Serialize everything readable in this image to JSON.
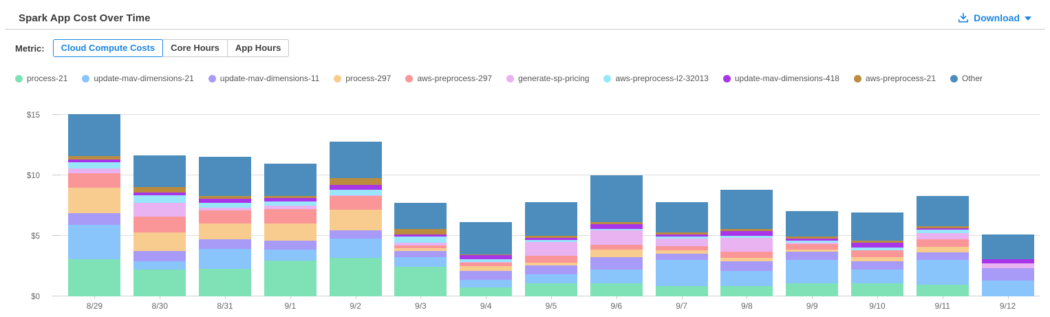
{
  "header": {
    "title": "Spark App Cost Over Time",
    "download_label": "Download"
  },
  "controls": {
    "metric_label": "Metric:",
    "options": [
      {
        "label": "Cloud Compute Costs",
        "selected": true
      },
      {
        "label": "Core Hours",
        "selected": false
      },
      {
        "label": "App Hours",
        "selected": false
      }
    ]
  },
  "colors": {
    "accent": "#1b86e3",
    "gridline": "#dcdcdc",
    "axis_text": "#686868"
  },
  "chart_data": {
    "type": "bar",
    "stacked": true,
    "title": "Spark App Cost Over Time",
    "xlabel": "",
    "ylabel": "",
    "legend_position": "top",
    "grid": true,
    "ylim": [
      0,
      15.97
    ],
    "yticks": [
      0,
      5,
      10,
      15
    ],
    "ytick_labels": [
      "$0",
      "$5",
      "$10",
      "$15"
    ],
    "categories": [
      "8/29",
      "8/30",
      "8/31",
      "9/1",
      "9/2",
      "9/3",
      "9/4",
      "9/5",
      "9/6",
      "9/7",
      "9/8",
      "9/9",
      "9/10",
      "9/11",
      "9/12"
    ],
    "series": [
      {
        "name": "process-21",
        "color": "#7fe1b6",
        "values": [
          3.09,
          2.2,
          2.27,
          2.95,
          3.18,
          2.46,
          0.76,
          1.1,
          1.1,
          0.87,
          0.87,
          1.1,
          1.1,
          0.95,
          0.0
        ]
      },
      {
        "name": "update-mav-dimensions-21",
        "color": "#89c4fb",
        "values": [
          2.84,
          0.7,
          1.63,
          0.89,
          1.61,
          0.76,
          0.63,
          0.72,
          1.1,
          2.12,
          1.21,
          1.89,
          1.1,
          2.08,
          1.33
        ]
      },
      {
        "name": "update-mav-dimensions-11",
        "color": "#a89bf8",
        "values": [
          0.95,
          0.85,
          0.8,
          0.74,
          0.66,
          0.53,
          0.7,
          0.76,
          1.02,
          0.53,
          0.81,
          0.72,
          0.7,
          0.63,
          0.98
        ]
      },
      {
        "name": "process-297",
        "color": "#f8cc8e",
        "values": [
          2.12,
          1.55,
          1.32,
          1.44,
          1.71,
          0.25,
          0.44,
          0.19,
          0.62,
          0.27,
          0.27,
          0.15,
          0.34,
          0.42,
          0.0
        ]
      },
      {
        "name": "aws-preprocess-297",
        "color": "#fb9698",
        "values": [
          1.16,
          1.29,
          1.08,
          1.18,
          1.14,
          0.2,
          0.27,
          0.6,
          0.44,
          0.38,
          0.51,
          0.45,
          0.57,
          0.66,
          0.0
        ]
      },
      {
        "name": "generate-sp-pricing",
        "color": "#e9b2f0",
        "values": [
          0.42,
          1.17,
          0.21,
          0.3,
          0.05,
          0.21,
          0.06,
          1.14,
          1.17,
          0.62,
          1.14,
          0.12,
          0.0,
          0.51,
          0.44
        ]
      },
      {
        "name": "aws-preprocess-l2-32013",
        "color": "#99e6fb",
        "values": [
          0.51,
          0.57,
          0.45,
          0.32,
          0.47,
          0.51,
          0.19,
          0.15,
          0.14,
          0.13,
          0.17,
          0.17,
          0.23,
          0.27,
          0.0
        ]
      },
      {
        "name": "update-mav-dimensions-418",
        "color": "#a935ea",
        "values": [
          0.25,
          0.25,
          0.31,
          0.32,
          0.38,
          0.19,
          0.34,
          0.15,
          0.38,
          0.19,
          0.4,
          0.17,
          0.4,
          0.13,
          0.32
        ]
      },
      {
        "name": "aws-preprocess-21",
        "color": "#bb8c3e",
        "values": [
          0.25,
          0.47,
          0.25,
          0.19,
          0.57,
          0.48,
          0.11,
          0.19,
          0.19,
          0.19,
          0.17,
          0.19,
          0.17,
          0.17,
          0.0
        ]
      },
      {
        "name": "Other",
        "color": "#4c8dbd",
        "values": [
          3.45,
          2.58,
          3.2,
          2.62,
          3.03,
          2.12,
          2.67,
          2.78,
          3.84,
          2.48,
          3.24,
          2.07,
          2.34,
          2.46,
          2.03
        ]
      }
    ]
  }
}
